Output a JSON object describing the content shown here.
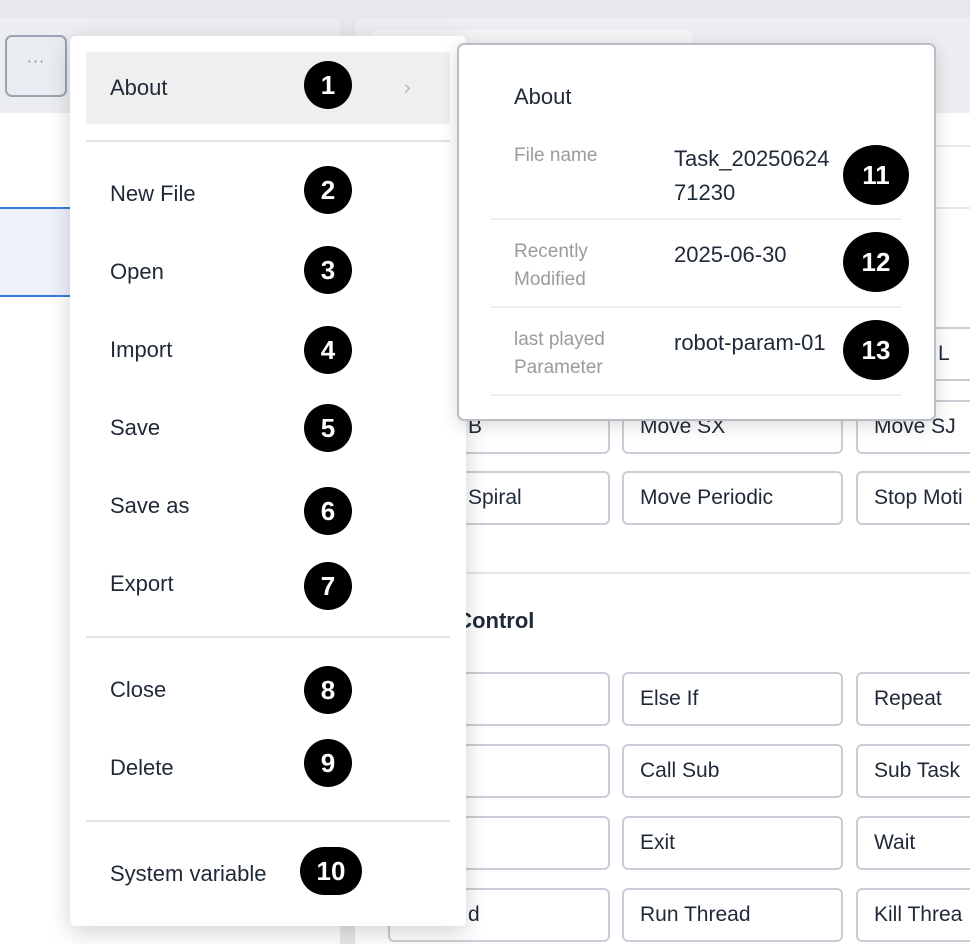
{
  "toolbar": {
    "more_label": "···"
  },
  "flow_control": {
    "heading": "Flow Control"
  },
  "buttons": {
    "row0": {
      "c3": "L"
    },
    "row1": {
      "c1": "B",
      "c2": "Move SX",
      "c3": "Move SJ"
    },
    "row2": {
      "c1": "Spiral",
      "c2": "Move Periodic",
      "c3": "Stop Moti"
    },
    "row3": {
      "c1": "",
      "c2": "Else If",
      "c3": "Repeat"
    },
    "row4": {
      "c1": "",
      "c2": "Call Sub",
      "c3": "Sub Task"
    },
    "row5": {
      "c1": "",
      "c2": "Exit",
      "c3": "Wait"
    },
    "row6": {
      "c1": "d",
      "c2": "Run Thread",
      "c3": "Kill Threa"
    }
  },
  "menu": {
    "items": [
      {
        "label": "About",
        "badge": "1"
      },
      {
        "label": "New File",
        "badge": "2"
      },
      {
        "label": "Open",
        "badge": "3"
      },
      {
        "label": "Import",
        "badge": "4"
      },
      {
        "label": "Save",
        "badge": "5"
      },
      {
        "label": "Save as",
        "badge": "6"
      },
      {
        "label": "Export",
        "badge": "7"
      },
      {
        "label": "Close",
        "badge": "8"
      },
      {
        "label": "Delete",
        "badge": "9"
      },
      {
        "label": "System variable",
        "badge": "10"
      }
    ]
  },
  "about": {
    "title": "About",
    "rows": [
      {
        "label": "File name",
        "value": "Task_20250624\n71230",
        "badge": "11"
      },
      {
        "label": "Recently\nModified",
        "value": "2025-06-30",
        "badge": "12"
      },
      {
        "label": "last played\nParameter",
        "value": "robot-param-01",
        "badge": "13"
      }
    ]
  }
}
